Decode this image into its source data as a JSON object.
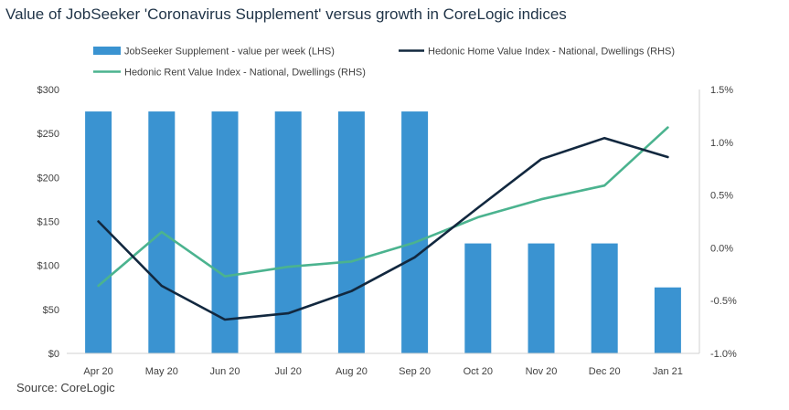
{
  "title": "Value of JobSeeker 'Coronavirus Supplement' versus growth in CoreLogic indices",
  "source": "Source: CoreLogic",
  "colors": {
    "bar": "#3a93d1",
    "home": "#12283f",
    "rent": "#4bb38f",
    "axis": "#d0d0d0"
  },
  "chart_data": {
    "type": "bar",
    "categories": [
      "Apr 20",
      "May 20",
      "Jun 20",
      "Jul 20",
      "Aug 20",
      "Sep 20",
      "Oct 20",
      "Nov 20",
      "Dec 20",
      "Jan 21"
    ],
    "series": [
      {
        "name": "JobSeeker Supplement - value per week (LHS)",
        "type": "bar",
        "axis": "left",
        "values": [
          275,
          275,
          275,
          275,
          275,
          275,
          125,
          125,
          125,
          75
        ]
      },
      {
        "name": "Hedonic Home Value Index - National, Dwellings (RHS)",
        "type": "line",
        "axis": "right",
        "values": [
          0.25,
          -0.36,
          -0.68,
          -0.62,
          -0.41,
          -0.09,
          0.38,
          0.84,
          1.04,
          0.86
        ]
      },
      {
        "name": "Hedonic Rent Value Index - National, Dwellings (RHS)",
        "type": "line",
        "axis": "right",
        "values": [
          -0.36,
          0.15,
          -0.27,
          -0.18,
          -0.13,
          0.05,
          0.29,
          0.46,
          0.59,
          1.14
        ]
      }
    ],
    "left_axis": {
      "ylim": [
        0,
        300
      ],
      "ticks": [
        0,
        50,
        100,
        150,
        200,
        250,
        300
      ],
      "tick_labels": [
        "$0",
        "$50",
        "$100",
        "$150",
        "$200",
        "$250",
        "$300"
      ]
    },
    "right_axis": {
      "ylim": [
        -1.0,
        1.5
      ],
      "ticks": [
        -1.0,
        -0.5,
        0.0,
        0.5,
        1.0,
        1.5
      ],
      "tick_labels": [
        "-1.0%",
        "-0.5%",
        "0.0%",
        "0.5%",
        "1.0%",
        "1.5%"
      ]
    },
    "grid": false,
    "legend_position": "top"
  }
}
